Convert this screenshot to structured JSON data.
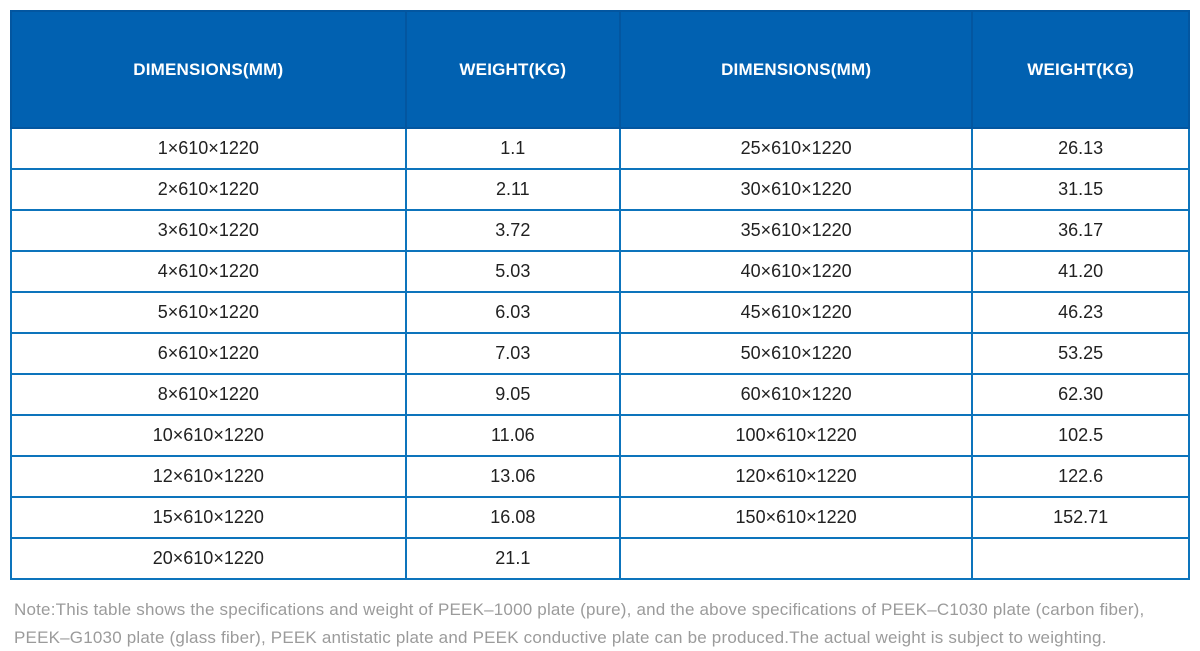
{
  "colors": {
    "header_bg": "#0161b1",
    "header_divider": "#0356a0",
    "header_text": "#ffffff",
    "grid_border": "#0d74bc",
    "cell_text": "#212121",
    "note_text": "#9b9b9b"
  },
  "table": {
    "headers": [
      "DIMENSIONS(MM)",
      "WEIGHT(KG)",
      "DIMENSIONS(MM)",
      "WEIGHT(KG)"
    ],
    "column_width_pct": [
      33.5,
      18.2,
      29.9,
      18.4
    ],
    "rows": [
      [
        "1×610×1220",
        "1.1",
        "25×610×1220",
        "26.13"
      ],
      [
        "2×610×1220",
        "2.11",
        "30×610×1220",
        "31.15"
      ],
      [
        "3×610×1220",
        "3.72",
        "35×610×1220",
        "36.17"
      ],
      [
        "4×610×1220",
        "5.03",
        "40×610×1220",
        "41.20"
      ],
      [
        "5×610×1220",
        "6.03",
        "45×610×1220",
        "46.23"
      ],
      [
        "6×610×1220",
        "7.03",
        "50×610×1220",
        "53.25"
      ],
      [
        "8×610×1220",
        "9.05",
        "60×610×1220",
        "62.30"
      ],
      [
        "10×610×1220",
        "11.06",
        "100×610×1220",
        "102.5"
      ],
      [
        "12×610×1220",
        "13.06",
        "120×610×1220",
        "122.6"
      ],
      [
        "15×610×1220",
        "16.08",
        "150×610×1220",
        "152.71"
      ],
      [
        "20×610×1220",
        "21.1",
        "",
        ""
      ]
    ]
  },
  "note": {
    "line1": "Note:This table shows the specifications and weight of PEEK–1000 plate (pure), and the above specifications of PEEK–C1030 plate (carbon fiber),",
    "line2": "PEEK–G1030 plate (glass fiber), PEEK antistatic plate and PEEK conductive plate can be produced.The actual weight is subject to weighting."
  }
}
